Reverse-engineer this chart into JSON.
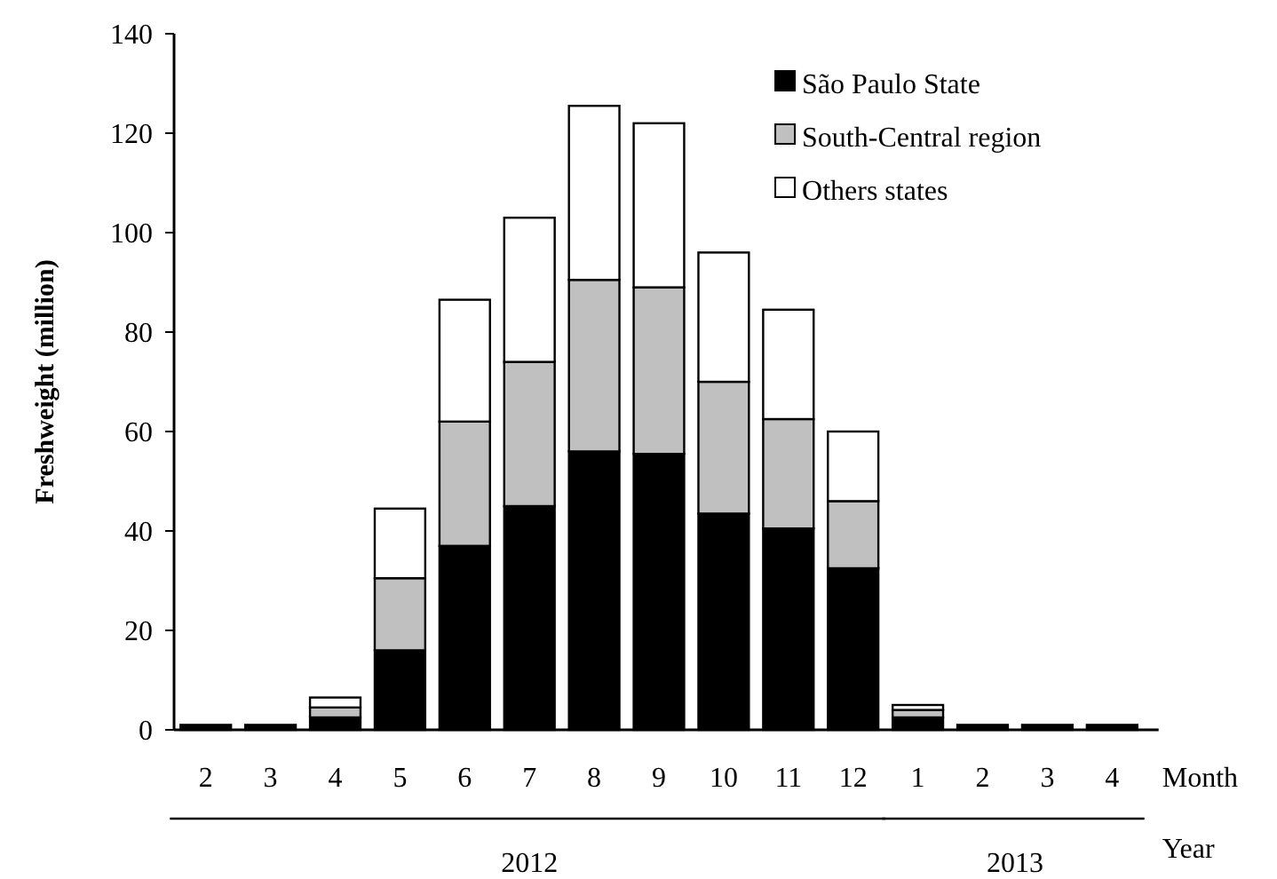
{
  "chart_data": {
    "type": "bar",
    "stacked": true,
    "ylabel": "Freshweight (million)",
    "xlabel": "Month",
    "categories": [
      "2",
      "3",
      "4",
      "5",
      "6",
      "7",
      "8",
      "9",
      "10",
      "11",
      "12",
      "1",
      "2",
      "3",
      "4"
    ],
    "series": [
      {
        "name": "São Paulo State",
        "color": "#000000",
        "values": [
          1,
          1,
          2.5,
          16,
          37,
          45,
          56,
          55.5,
          43.5,
          40.5,
          32.5,
          2.5,
          1,
          1,
          1
        ]
      },
      {
        "name": "South-Central region",
        "color": "#c0c0c0",
        "values": [
          0,
          0,
          2,
          14.5,
          25,
          29,
          34.5,
          33.5,
          26.5,
          22,
          13.5,
          1.5,
          0,
          0,
          0
        ]
      },
      {
        "name": "Others states",
        "color": "#ffffff",
        "values": [
          0,
          0,
          2,
          14,
          24.5,
          29,
          35,
          33,
          26,
          22,
          14,
          1,
          0,
          0,
          0
        ]
      }
    ],
    "ylim": [
      0,
      140
    ],
    "yticks": [
      0,
      20,
      40,
      60,
      80,
      100,
      120,
      140
    ],
    "grid": false,
    "legend": "top right",
    "annotations": [
      "Year",
      "2012",
      "2013"
    ]
  }
}
